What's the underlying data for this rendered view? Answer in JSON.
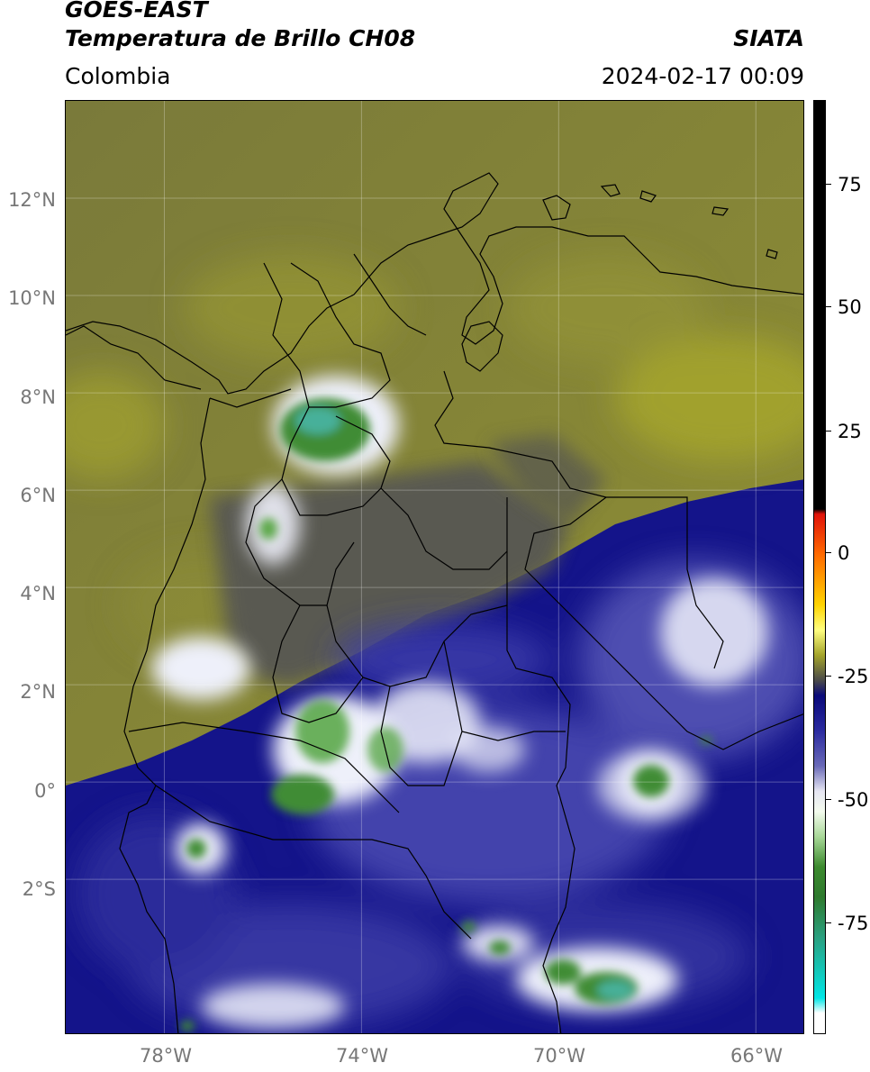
{
  "header": {
    "satellite": "GOES-EAST",
    "product": "Temperatura de Brillo CH08",
    "agency": "SIATA",
    "region": "Colombia",
    "timestamp": "2024-02-17 00:09"
  },
  "map": {
    "lat_ticks": [
      {
        "value": 12,
        "label": "12°N"
      },
      {
        "value": 10,
        "label": "10°N"
      },
      {
        "value": 8,
        "label": "8°N"
      },
      {
        "value": 6,
        "label": "6°N"
      },
      {
        "value": 4,
        "label": "4°N"
      },
      {
        "value": 2,
        "label": "2°N"
      },
      {
        "value": 0,
        "label": "0°"
      },
      {
        "value": -2,
        "label": "2°S"
      }
    ],
    "lon_ticks": [
      {
        "value": -78,
        "label": "78°W"
      },
      {
        "value": -74,
        "label": "74°W"
      },
      {
        "value": -70,
        "label": "70°W"
      },
      {
        "value": -66,
        "label": "66°W"
      }
    ],
    "extent": {
      "lon_min": -80,
      "lon_max": -65,
      "lat_min": -5.2,
      "lat_max": 14.0
    },
    "gridlines": true
  },
  "colorbar": {
    "range": [
      -95,
      90
    ],
    "tick_values": [
      75,
      50,
      25,
      0,
      -25,
      -50,
      -75
    ],
    "tick_labels": [
      "75",
      "50",
      "25",
      "0",
      "-25",
      "-50",
      "-75"
    ],
    "stops": [
      {
        "value": 90,
        "color": "#000000"
      },
      {
        "value": 9,
        "color": "#000000"
      },
      {
        "value": 8,
        "color": "#e0120a"
      },
      {
        "value": 0,
        "color": "#ff6a00"
      },
      {
        "value": -10,
        "color": "#ffd400"
      },
      {
        "value": -15,
        "color": "#fffe80"
      },
      {
        "value": -20,
        "color": "#a3a32a"
      },
      {
        "value": -25,
        "color": "#4a4a4a"
      },
      {
        "value": -28,
        "color": "#0a0a7a"
      },
      {
        "value": -35,
        "color": "#2b2ba0"
      },
      {
        "value": -42,
        "color": "#6a6ab8"
      },
      {
        "value": -47,
        "color": "#e6e6f2"
      },
      {
        "value": -51,
        "color": "#f4fbee"
      },
      {
        "value": -56,
        "color": "#a8d898"
      },
      {
        "value": -62,
        "color": "#3c8a2e"
      },
      {
        "value": -68,
        "color": "#2e7a2e"
      },
      {
        "value": -76,
        "color": "#2aa080"
      },
      {
        "value": -88,
        "color": "#00e6e6"
      },
      {
        "value": -91,
        "color": "#ffffff"
      },
      {
        "value": -95,
        "color": "#ffffff"
      }
    ]
  },
  "colors": {
    "olive_bg": "#7b7b35",
    "olive_light": "#a4a42d",
    "deep_blue": "#10107e",
    "mid_blue": "#3a3aa6",
    "gray_land": "#4f4f4f",
    "cloud_white": "#eef0f8",
    "cloud_green": "#3f8c34",
    "cloud_teal": "#43b39a"
  }
}
